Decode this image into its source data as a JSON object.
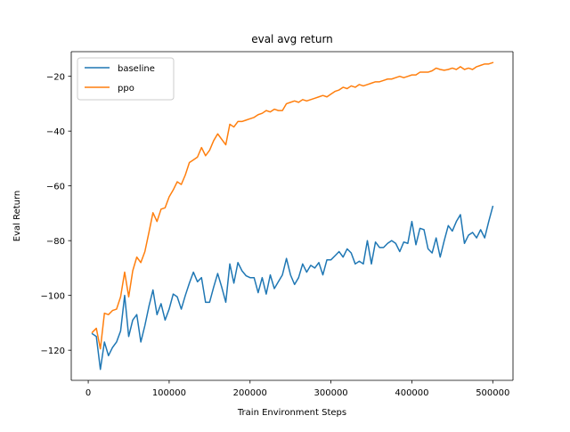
{
  "chart_data": {
    "type": "line",
    "title": "eval avg return",
    "xlabel": "Train Environment Steps",
    "ylabel": "Eval Return",
    "xlim": [
      -21000,
      525000
    ],
    "ylim": [
      -131,
      -11
    ],
    "xticks": [
      0,
      100000,
      200000,
      300000,
      400000,
      500000
    ],
    "xtick_labels": [
      "0",
      "100000",
      "200000",
      "300000",
      "400000",
      "500000"
    ],
    "yticks": [
      -120,
      -100,
      -80,
      -60,
      -40,
      -20
    ],
    "ytick_labels": [
      "−120",
      "−100",
      "−80",
      "−60",
      "−40",
      "−20"
    ],
    "grid": false,
    "legend_position": "upper-left",
    "x": [
      5000,
      10000,
      15000,
      20000,
      25000,
      30000,
      35000,
      40000,
      45000,
      50000,
      55000,
      60000,
      65000,
      70000,
      75000,
      80000,
      85000,
      90000,
      95000,
      100000,
      105000,
      110000,
      115000,
      120000,
      125000,
      130000,
      135000,
      140000,
      145000,
      150000,
      155000,
      160000,
      165000,
      170000,
      175000,
      180000,
      185000,
      190000,
      195000,
      200000,
      205000,
      210000,
      215000,
      220000,
      225000,
      230000,
      235000,
      240000,
      245000,
      250000,
      255000,
      260000,
      265000,
      270000,
      275000,
      280000,
      285000,
      290000,
      295000,
      300000,
      305000,
      310000,
      315000,
      320000,
      325000,
      330000,
      335000,
      340000,
      345000,
      350000,
      355000,
      360000,
      365000,
      370000,
      375000,
      380000,
      385000,
      390000,
      395000,
      400000,
      405000,
      410000,
      415000,
      420000,
      425000,
      430000,
      435000,
      440000,
      445000,
      450000,
      455000,
      460000,
      465000,
      470000,
      475000,
      480000,
      485000,
      490000,
      495000,
      500000
    ],
    "series": [
      {
        "name": "baseline",
        "color": "#1f77b4",
        "values": [
          -114,
          -115,
          -127,
          -117,
          -122,
          -119,
          -117,
          -113,
          -100,
          -115,
          -109,
          -107,
          -117,
          -111,
          -104,
          -98,
          -107,
          -103,
          -109,
          -105,
          -99.5,
          -100.5,
          -105,
          -100,
          -95.5,
          -91.5,
          -95,
          -93.5,
          -102.5,
          -102.5,
          -97,
          -92,
          -97,
          -102.5,
          -88.5,
          -95.5,
          -88,
          -91,
          -92.8,
          -93.5,
          -93.5,
          -99,
          -93.5,
          -99.5,
          -92.5,
          -97.5,
          -95,
          -92.5,
          -86.5,
          -92.5,
          -96,
          -93.5,
          -88.5,
          -91.5,
          -89,
          -90,
          -88,
          -92.5,
          -87,
          -87,
          -85.5,
          -84,
          -86,
          -83,
          -84.5,
          -88.5,
          -87.5,
          -88.5,
          -80,
          -88.5,
          -80.5,
          -82.5,
          -82.5,
          -81,
          -80,
          -81,
          -84,
          -80.5,
          -81,
          -73,
          -81.5,
          -75.5,
          -76,
          -83,
          -84.5,
          -79,
          -86,
          -80,
          -74.5,
          -76.5,
          -73,
          -70.5,
          -81,
          -78,
          -77,
          -79,
          -76,
          -79,
          -73,
          -67.5
        ]
      },
      {
        "name": "ppo",
        "color": "#ff7f0e",
        "values": [
          -113.5,
          -112,
          -119.5,
          -106.5,
          -107,
          -105.5,
          -105,
          -100.5,
          -91.5,
          -100.5,
          -91,
          -86,
          -88,
          -84,
          -77,
          -69.8,
          -73,
          -68.5,
          -68,
          -64,
          -61.5,
          -58.5,
          -59.5,
          -56,
          -51.5,
          -50.5,
          -49.5,
          -46,
          -49,
          -47,
          -43.5,
          -41,
          -43,
          -45,
          -37.5,
          -38.5,
          -36.5,
          -36.5,
          -36,
          -35.5,
          -35,
          -34,
          -33.5,
          -32.5,
          -33,
          -32,
          -32.5,
          -32.5,
          -30,
          -29.5,
          -29,
          -29.5,
          -28.5,
          -29,
          -28.5,
          -28,
          -27.5,
          -27,
          -27.5,
          -26.5,
          -25.5,
          -25,
          -24,
          -24.5,
          -23.5,
          -24,
          -23,
          -23.5,
          -23,
          -22.5,
          -22,
          -22,
          -21.5,
          -21,
          -21,
          -20.5,
          -20,
          -20.5,
          -20,
          -19.5,
          -19.5,
          -18.5,
          -18.5,
          -18.5,
          -18,
          -17,
          -17.5,
          -17.8,
          -17.5,
          -17,
          -17.5,
          -16.5,
          -17.5,
          -17,
          -17.5,
          -16.5,
          -16,
          -15.5,
          -15.5,
          -15
        ]
      }
    ]
  }
}
